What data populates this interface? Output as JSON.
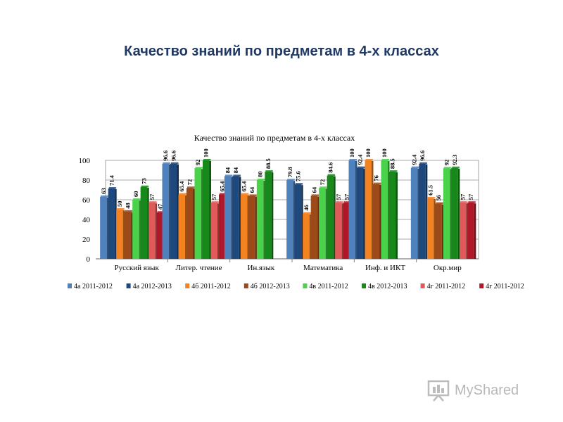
{
  "slide": {
    "title": "Качество знаний по предметам в 4-х классах",
    "watermark": "MyShared"
  },
  "chart_data": {
    "type": "bar",
    "title": "Качество знаний по предметам в 4-х классах",
    "xlabel": "",
    "ylabel": "",
    "ylim": [
      0,
      100
    ],
    "yticks": [
      0,
      20,
      40,
      60,
      80,
      100
    ],
    "grid": true,
    "legend_position": "bottom",
    "categories": [
      "Русский язык",
      "Литер. чтение",
      "Ин.язык",
      "Математика",
      "Инф. и ИКТ",
      "Окр.мир"
    ],
    "series": [
      {
        "name": "4а 2011-2012",
        "color": "#4f81bd",
        "values": [
          63,
          96.6,
          84,
          79.8,
          100,
          92.4
        ]
      },
      {
        "name": "4а 2012-2013",
        "color": "#1f497d",
        "values": [
          71.4,
          96.6,
          84,
          75.6,
          92.4,
          96.6
        ]
      },
      {
        "name": "4б 2011-2012",
        "color": "#f58220",
        "values": [
          50,
          65.4,
          65.4,
          46,
          100,
          61.5
        ]
      },
      {
        "name": "4б 2012-2013",
        "color": "#9c4a1a",
        "values": [
          48,
          72,
          64,
          64,
          76,
          56
        ]
      },
      {
        "name": "4в 2011-2012",
        "color": "#4ad24a",
        "values": [
          60,
          92,
          80,
          72,
          100,
          92
        ]
      },
      {
        "name": "4в 2012-2013",
        "color": "#17891b",
        "values": [
          73,
          100,
          88.5,
          84.6,
          88.5,
          92.3
        ]
      },
      {
        "name": "4г 2011-2012",
        "color": "#e05a5a",
        "values": [
          57,
          57,
          0,
          57,
          0,
          57
        ]
      },
      {
        "name": "4г 2011-2012",
        "color": "#b0182a",
        "values": [
          47,
          65.4,
          0,
          57,
          0,
          57
        ]
      }
    ],
    "data_labels": [
      [
        "63",
        "71.4",
        "50",
        "48",
        "60",
        "73",
        "57",
        "47"
      ],
      [
        "96.6",
        "96.6",
        "65.4",
        "72",
        "92",
        "100",
        "57",
        "65.4"
      ],
      [
        "84",
        "84",
        "65.4",
        "64",
        "80",
        "88.5",
        "",
        ""
      ],
      [
        "79.8",
        "75.6",
        "46",
        "64",
        "72",
        "84.6",
        "57",
        "57"
      ],
      [
        "100",
        "92.4",
        "100",
        "76",
        "100",
        "88.5",
        "",
        ""
      ],
      [
        "92.4",
        "96.6",
        "61.5",
        "56",
        "92",
        "92.3",
        "57",
        "57"
      ]
    ]
  }
}
